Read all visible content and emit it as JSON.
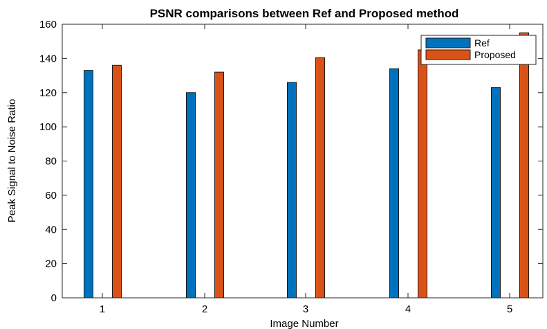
{
  "chart_data": {
    "type": "bar",
    "title": "PSNR comparisons between Ref and Proposed method",
    "xlabel": "Image Number",
    "ylabel": "Peak Signal to Noise Ratio",
    "categories": [
      "1",
      "2",
      "3",
      "4",
      "5"
    ],
    "ylim": [
      0,
      160
    ],
    "yticks": [
      "0",
      "20",
      "40",
      "60",
      "80",
      "100",
      "120",
      "140",
      "160"
    ],
    "grid": false,
    "legend_position": "top-right",
    "series": [
      {
        "name": "Ref",
        "color": "#0072BD",
        "values": [
          133,
          120,
          126,
          134,
          123
        ]
      },
      {
        "name": "Proposed",
        "color": "#D95319",
        "values": [
          136,
          132,
          140.5,
          145,
          155
        ]
      }
    ]
  }
}
